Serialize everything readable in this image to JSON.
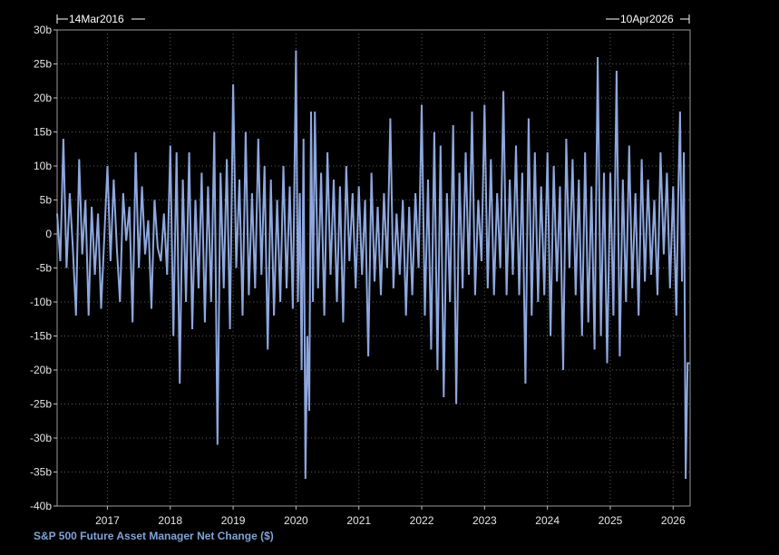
{
  "chart_data": {
    "type": "line",
    "title": "S&P 500 Future Asset Manager Net Change ($)",
    "start_label": "14Mar2016",
    "end_label": "10Apr2026",
    "y_ticks": [
      "30b",
      "25b",
      "20b",
      "15b",
      "10b",
      "5b",
      "0",
      "-5b",
      "-10b",
      "-15b",
      "-20b",
      "-25b",
      "-30b",
      "-35b",
      "-40b"
    ],
    "x_ticks": [
      "2017",
      "2018",
      "2019",
      "2020",
      "2021",
      "2022",
      "2023",
      "2024",
      "2025",
      "2026"
    ],
    "ylim": [
      -40,
      30
    ],
    "xlim": [
      2016.2,
      2026.27
    ],
    "y_unit": "billion USD",
    "series": [
      {
        "color": "#8ea7de",
        "points": [
          [
            2016.2,
            3
          ],
          [
            2016.25,
            -4
          ],
          [
            2016.3,
            14
          ],
          [
            2016.35,
            -5
          ],
          [
            2016.4,
            6
          ],
          [
            2016.45,
            -2
          ],
          [
            2016.5,
            -12
          ],
          [
            2016.55,
            11
          ],
          [
            2016.6,
            -3
          ],
          [
            2016.65,
            5
          ],
          [
            2016.7,
            -12
          ],
          [
            2016.75,
            4
          ],
          [
            2016.8,
            -6
          ],
          [
            2016.85,
            3
          ],
          [
            2016.9,
            -11
          ],
          [
            2017.0,
            10
          ],
          [
            2017.05,
            -4
          ],
          [
            2017.1,
            8
          ],
          [
            2017.15,
            -2
          ],
          [
            2017.2,
            -10
          ],
          [
            2017.25,
            6
          ],
          [
            2017.3,
            -1
          ],
          [
            2017.35,
            4
          ],
          [
            2017.4,
            -13
          ],
          [
            2017.45,
            12
          ],
          [
            2017.5,
            -5
          ],
          [
            2017.55,
            7
          ],
          [
            2017.6,
            -3
          ],
          [
            2017.65,
            2
          ],
          [
            2017.7,
            -11
          ],
          [
            2017.75,
            5
          ],
          [
            2017.8,
            -2
          ],
          [
            2017.85,
            -4
          ],
          [
            2017.9,
            3
          ],
          [
            2017.95,
            -6
          ],
          [
            2018.0,
            13
          ],
          [
            2018.05,
            -15
          ],
          [
            2018.1,
            12
          ],
          [
            2018.15,
            -22
          ],
          [
            2018.2,
            8
          ],
          [
            2018.25,
            -10
          ],
          [
            2018.3,
            12
          ],
          [
            2018.35,
            -14
          ],
          [
            2018.4,
            5
          ],
          [
            2018.45,
            -8
          ],
          [
            2018.5,
            9
          ],
          [
            2018.55,
            -13
          ],
          [
            2018.6,
            7
          ],
          [
            2018.65,
            -10
          ],
          [
            2018.7,
            15
          ],
          [
            2018.75,
            -31
          ],
          [
            2018.8,
            9
          ],
          [
            2018.85,
            -8
          ],
          [
            2018.9,
            11
          ],
          [
            2018.95,
            -14
          ],
          [
            2019.0,
            22
          ],
          [
            2019.05,
            -5
          ],
          [
            2019.1,
            8
          ],
          [
            2019.15,
            -12
          ],
          [
            2019.2,
            15
          ],
          [
            2019.25,
            -9
          ],
          [
            2019.3,
            6
          ],
          [
            2019.35,
            -8
          ],
          [
            2019.4,
            14
          ],
          [
            2019.45,
            -6
          ],
          [
            2019.5,
            10
          ],
          [
            2019.55,
            -17
          ],
          [
            2019.6,
            8
          ],
          [
            2019.65,
            -12
          ],
          [
            2019.7,
            5
          ],
          [
            2019.75,
            -10
          ],
          [
            2019.8,
            10
          ],
          [
            2019.85,
            -8
          ],
          [
            2019.9,
            7
          ],
          [
            2019.95,
            -11
          ],
          [
            2020.0,
            27
          ],
          [
            2020.03,
            -10
          ],
          [
            2020.06,
            6
          ],
          [
            2020.09,
            -20
          ],
          [
            2020.12,
            14
          ],
          [
            2020.15,
            -36
          ],
          [
            2020.18,
            -15
          ],
          [
            2020.21,
            -26
          ],
          [
            2020.24,
            18
          ],
          [
            2020.27,
            -10
          ],
          [
            2020.3,
            18
          ],
          [
            2020.35,
            -8
          ],
          [
            2020.4,
            9
          ],
          [
            2020.45,
            -12
          ],
          [
            2020.5,
            12
          ],
          [
            2020.55,
            -6
          ],
          [
            2020.6,
            8
          ],
          [
            2020.65,
            -10
          ],
          [
            2020.7,
            7
          ],
          [
            2020.75,
            -13
          ],
          [
            2020.8,
            10
          ],
          [
            2020.85,
            -4
          ],
          [
            2020.9,
            6
          ],
          [
            2020.95,
            -8
          ],
          [
            2021.0,
            7
          ],
          [
            2021.05,
            -6
          ],
          [
            2021.1,
            5
          ],
          [
            2021.15,
            -18
          ],
          [
            2021.2,
            9
          ],
          [
            2021.25,
            -7
          ],
          [
            2021.3,
            4
          ],
          [
            2021.35,
            -9
          ],
          [
            2021.4,
            6
          ],
          [
            2021.45,
            -5
          ],
          [
            2021.5,
            17
          ],
          [
            2021.55,
            -8
          ],
          [
            2021.6,
            3
          ],
          [
            2021.65,
            -6
          ],
          [
            2021.7,
            5
          ],
          [
            2021.75,
            -12
          ],
          [
            2021.8,
            4
          ],
          [
            2021.85,
            -9
          ],
          [
            2021.9,
            6
          ],
          [
            2021.95,
            -5
          ],
          [
            2022.0,
            19
          ],
          [
            2022.05,
            -12
          ],
          [
            2022.1,
            8
          ],
          [
            2022.15,
            -17
          ],
          [
            2022.2,
            15
          ],
          [
            2022.25,
            -20
          ],
          [
            2022.3,
            13
          ],
          [
            2022.35,
            -24
          ],
          [
            2022.4,
            6
          ],
          [
            2022.45,
            -10
          ],
          [
            2022.5,
            16
          ],
          [
            2022.55,
            -25
          ],
          [
            2022.6,
            9
          ],
          [
            2022.65,
            -8
          ],
          [
            2022.7,
            12
          ],
          [
            2022.75,
            -6
          ],
          [
            2022.8,
            18
          ],
          [
            2022.85,
            -9
          ],
          [
            2022.9,
            5
          ],
          [
            2022.95,
            -4
          ],
          [
            2023.0,
            19
          ],
          [
            2023.05,
            -8
          ],
          [
            2023.1,
            11
          ],
          [
            2023.15,
            -9
          ],
          [
            2023.2,
            6
          ],
          [
            2023.25,
            -5
          ],
          [
            2023.3,
            21
          ],
          [
            2023.35,
            -9
          ],
          [
            2023.4,
            8
          ],
          [
            2023.45,
            -6
          ],
          [
            2023.5,
            13
          ],
          [
            2023.55,
            -9
          ],
          [
            2023.6,
            9
          ],
          [
            2023.65,
            -22
          ],
          [
            2023.7,
            17
          ],
          [
            2023.75,
            -12
          ],
          [
            2023.8,
            12
          ],
          [
            2023.85,
            -10
          ],
          [
            2023.9,
            7
          ],
          [
            2023.95,
            -9
          ],
          [
            2024.0,
            12
          ],
          [
            2024.05,
            -15
          ],
          [
            2024.1,
            10
          ],
          [
            2024.15,
            -7
          ],
          [
            2024.2,
            7
          ],
          [
            2024.25,
            -20
          ],
          [
            2024.3,
            14
          ],
          [
            2024.35,
            -5
          ],
          [
            2024.4,
            11
          ],
          [
            2024.45,
            -9
          ],
          [
            2024.5,
            8
          ],
          [
            2024.55,
            -15
          ],
          [
            2024.6,
            12
          ],
          [
            2024.65,
            -13
          ],
          [
            2024.7,
            7
          ],
          [
            2024.75,
            -17
          ],
          [
            2024.8,
            26
          ],
          [
            2024.85,
            -15
          ],
          [
            2024.9,
            9
          ],
          [
            2024.95,
            -19
          ],
          [
            2025.0,
            9
          ],
          [
            2025.05,
            -12
          ],
          [
            2025.1,
            24
          ],
          [
            2025.15,
            -18
          ],
          [
            2025.2,
            8
          ],
          [
            2025.25,
            -10
          ],
          [
            2025.3,
            13
          ],
          [
            2025.35,
            -8
          ],
          [
            2025.4,
            6
          ],
          [
            2025.45,
            -12
          ],
          [
            2025.5,
            11
          ],
          [
            2025.55,
            -7
          ],
          [
            2025.6,
            8
          ],
          [
            2025.65,
            -6
          ],
          [
            2025.7,
            5
          ],
          [
            2025.75,
            -9
          ],
          [
            2025.8,
            12
          ],
          [
            2025.85,
            -3
          ],
          [
            2025.9,
            9
          ],
          [
            2025.95,
            -8
          ],
          [
            2026.0,
            7
          ],
          [
            2026.05,
            -12
          ],
          [
            2026.08,
            5
          ],
          [
            2026.11,
            18
          ],
          [
            2026.14,
            -7
          ],
          [
            2026.17,
            12
          ],
          [
            2026.2,
            -36
          ],
          [
            2026.23,
            -19
          ],
          [
            2026.26,
            -19
          ]
        ]
      }
    ],
    "grid": true,
    "grid_style": "dotted",
    "legend": "none",
    "background_color": "#000000",
    "line_color": "#8ea7de"
  }
}
